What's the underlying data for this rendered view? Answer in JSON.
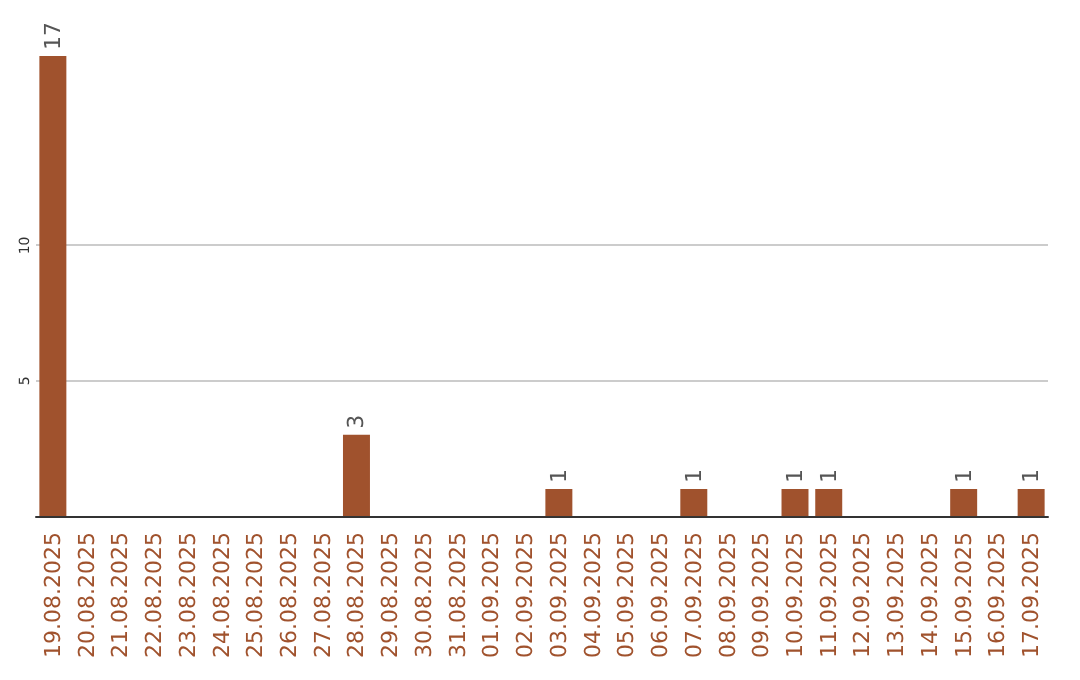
{
  "chart_data": {
    "type": "bar",
    "categories": [
      "19.08.2025",
      "20.08.2025",
      "21.08.2025",
      "22.08.2025",
      "23.08.2025",
      "24.08.2025",
      "25.08.2025",
      "26.08.2025",
      "27.08.2025",
      "28.08.2025",
      "29.08.2025",
      "30.08.2025",
      "31.08.2025",
      "01.09.2025",
      "02.09.2025",
      "03.09.2025",
      "04.09.2025",
      "05.09.2025",
      "06.09.2025",
      "07.09.2025",
      "08.09.2025",
      "09.09.2025",
      "10.09.2025",
      "11.09.2025",
      "12.09.2025",
      "13.09.2025",
      "14.09.2025",
      "15.09.2025",
      "16.09.2025",
      "17.09.2025"
    ],
    "values": [
      17,
      0,
      0,
      0,
      0,
      0,
      0,
      0,
      0,
      3,
      0,
      0,
      0,
      0,
      0,
      1,
      0,
      0,
      0,
      1,
      0,
      0,
      1,
      1,
      0,
      0,
      0,
      1,
      0,
      1
    ],
    "value_labels": [
      "17",
      null,
      null,
      null,
      null,
      null,
      null,
      null,
      null,
      "3",
      null,
      null,
      null,
      null,
      null,
      "1",
      null,
      null,
      null,
      "1",
      null,
      null,
      "1",
      "1",
      null,
      null,
      null,
      "1",
      null,
      "1"
    ],
    "color": "#a0522d",
    "ylim": [
      0,
      17
    ],
    "yticks": [
      5,
      10
    ],
    "grid": "y"
  }
}
